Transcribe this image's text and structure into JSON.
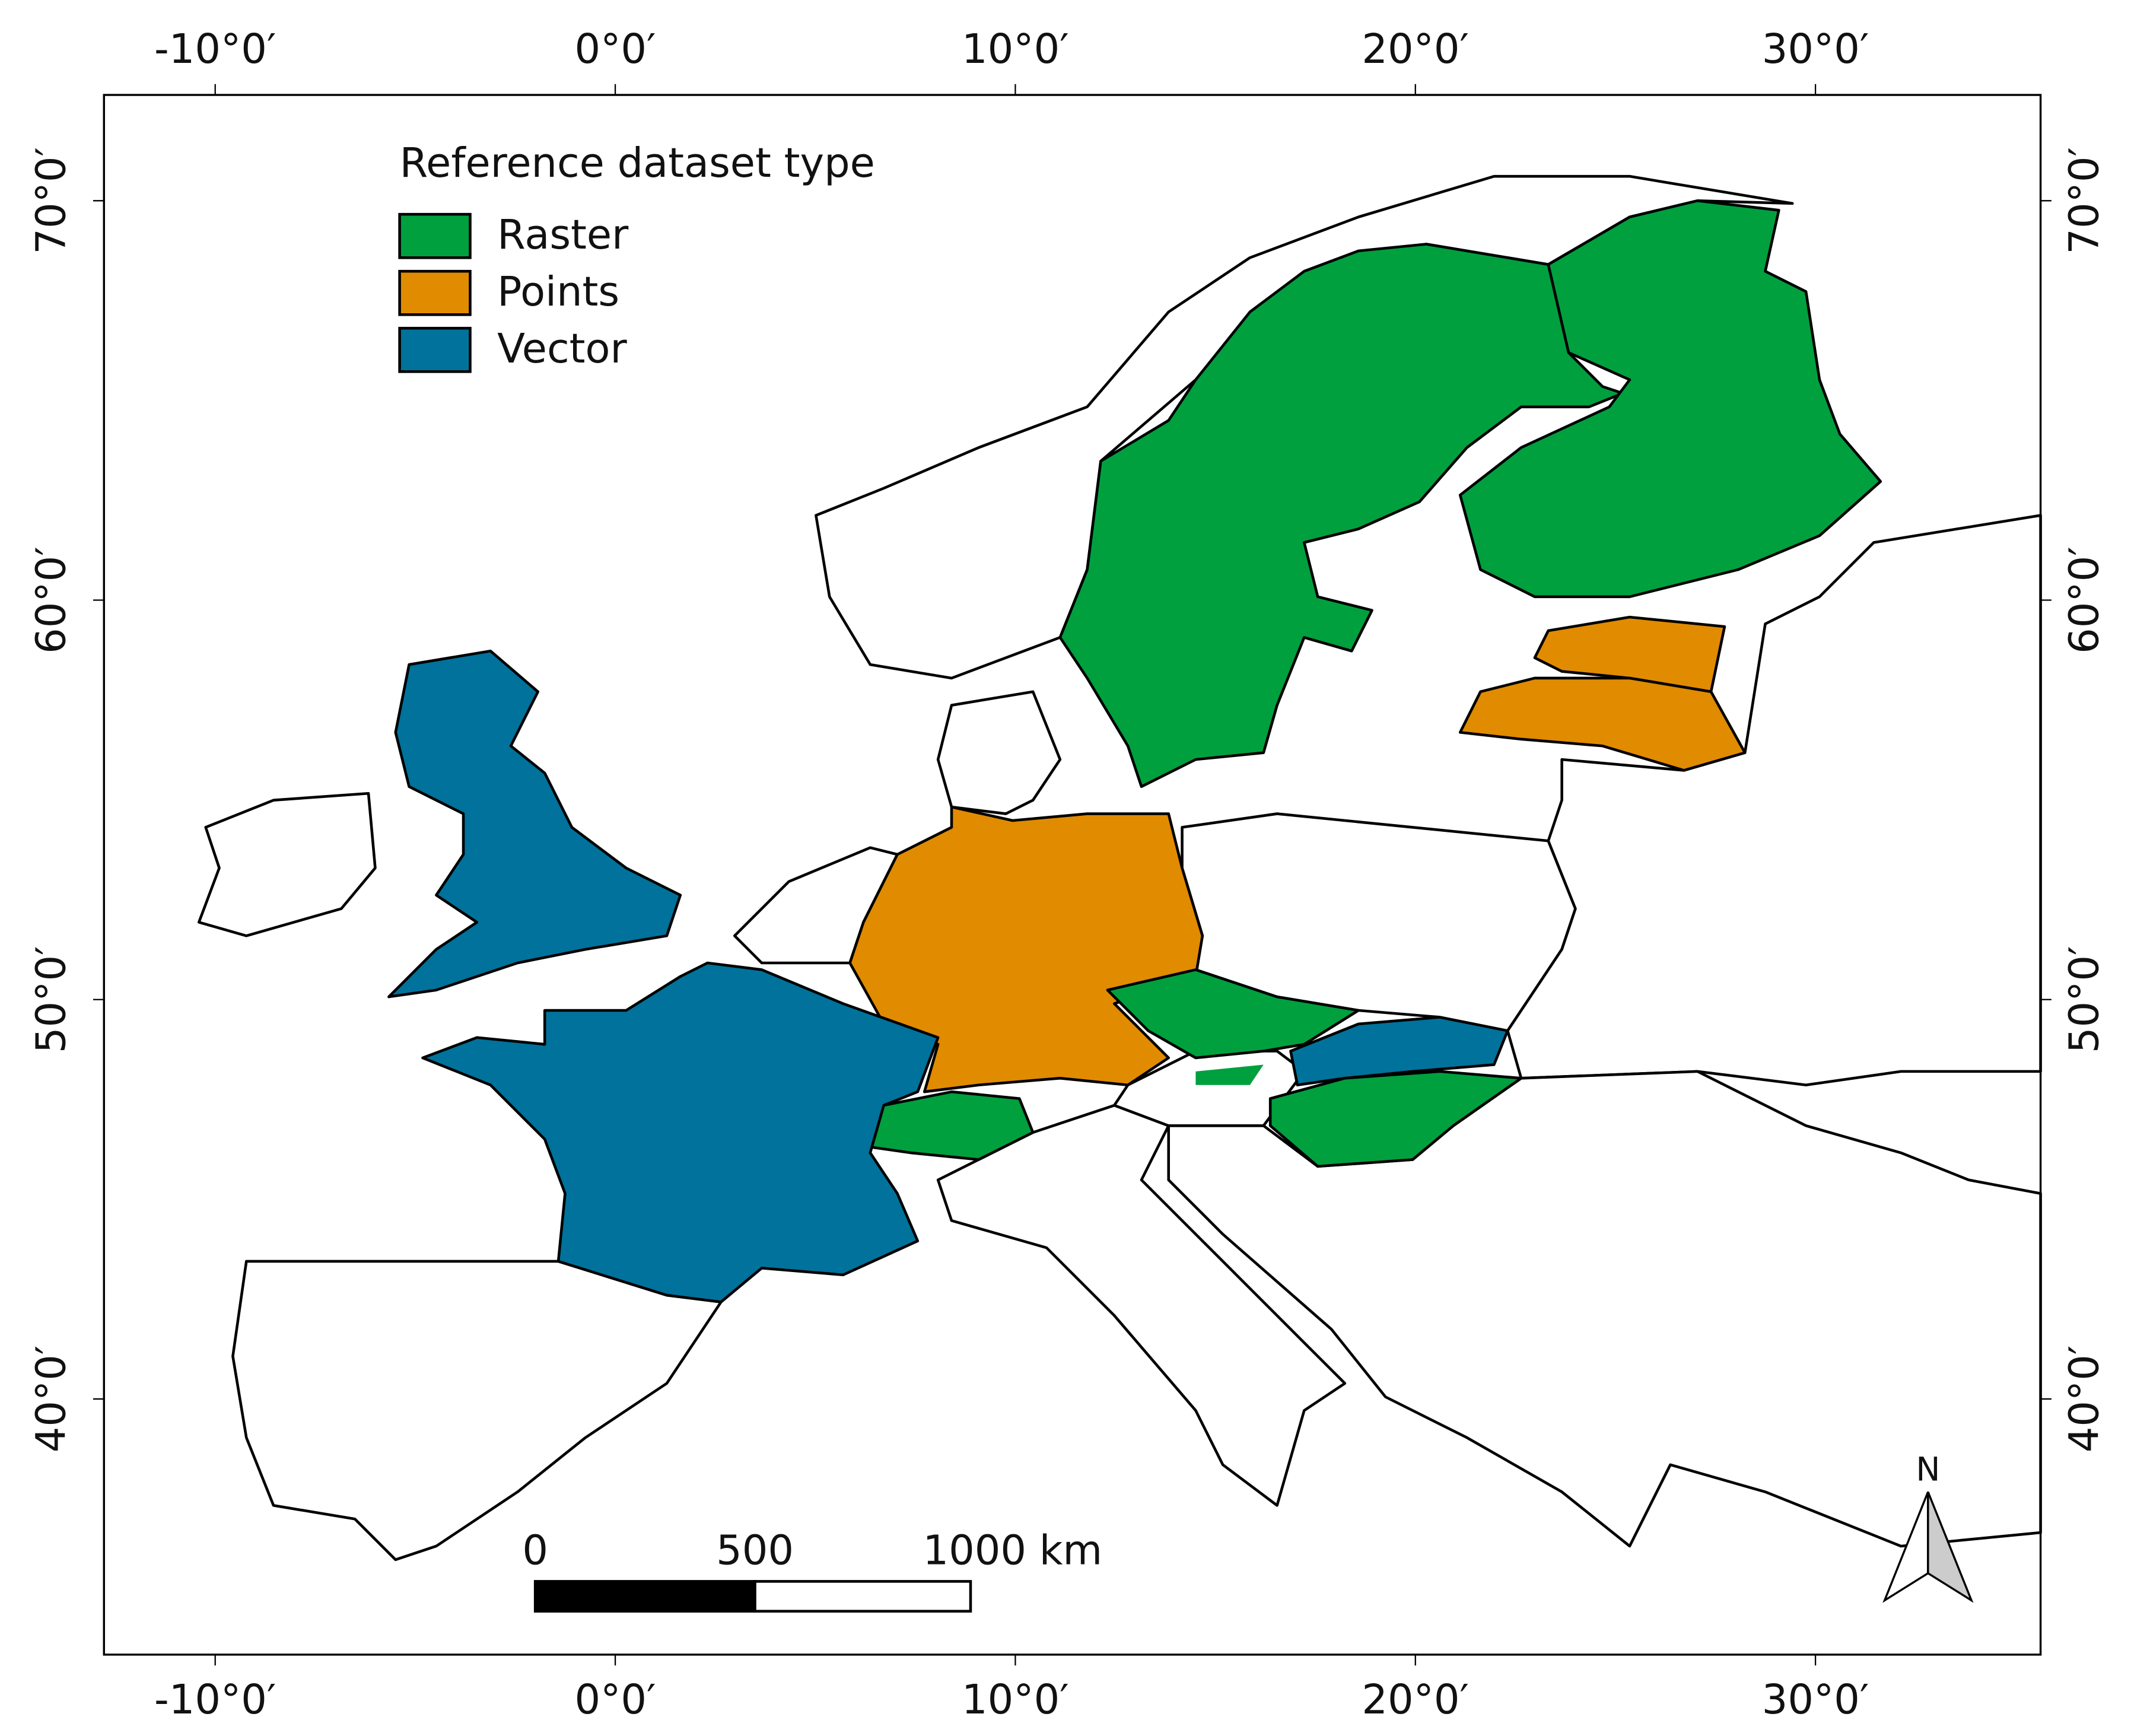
{
  "legend": {
    "title": "Reference dataset type",
    "items": [
      {
        "label": "Raster",
        "color": "#00a03e"
      },
      {
        "label": "Points",
        "color": "#e08b00"
      },
      {
        "label": "Vector",
        "color": "#00729b"
      }
    ]
  },
  "axes": {
    "x_labels": [
      "-10°0′",
      "0°0′",
      "10°0′",
      "20°0′",
      "30°0′"
    ],
    "y_labels": [
      "70°0′",
      "60°0′",
      "50°0′",
      "40°0′"
    ]
  },
  "scale_bar": {
    "labels": [
      "0",
      "500",
      "1000 km"
    ]
  },
  "north_arrow": "N"
}
